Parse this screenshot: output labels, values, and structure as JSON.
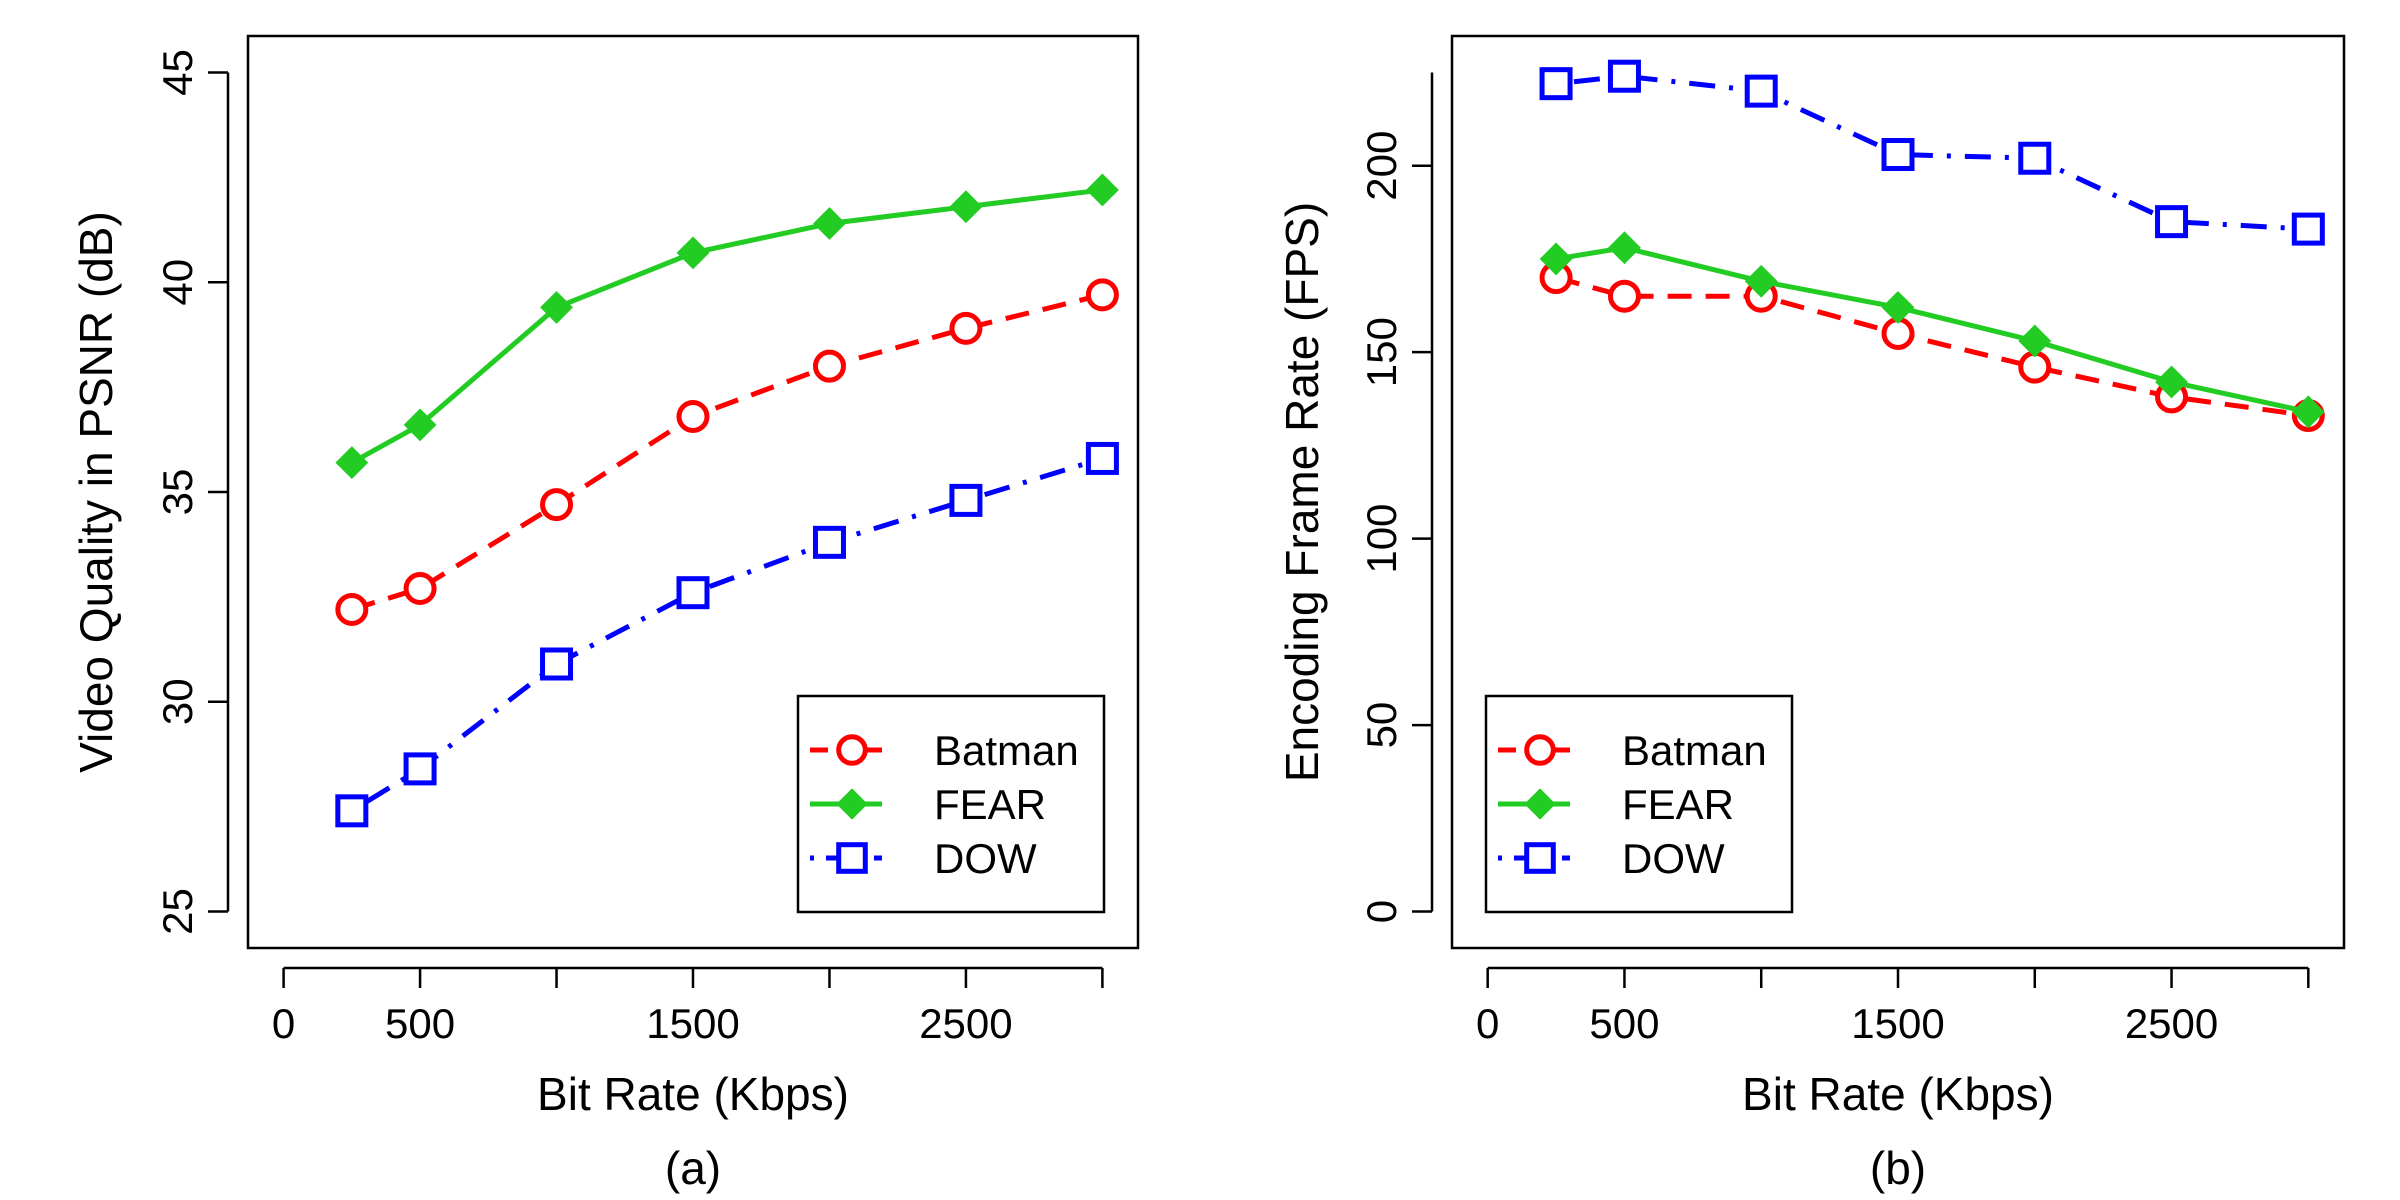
{
  "chart_data": [
    {
      "type": "line",
      "caption": "(a)",
      "xlabel": "Bit Rate (Kbps)",
      "ylabel": "Video Quality in PSNR (dB)",
      "xlim": [
        0,
        3000
      ],
      "ylim": [
        25,
        45
      ],
      "xticks": [
        0,
        500,
        1500,
        2500
      ],
      "xtick_marks": [
        0,
        500,
        1000,
        1500,
        2000,
        2500,
        3000
      ],
      "xtick_labels": [
        "0",
        "500",
        "1500",
        "2500"
      ],
      "yticks": [
        25,
        30,
        35,
        40,
        45
      ],
      "ytick_labels": [
        "25",
        "30",
        "35",
        "40",
        "45"
      ],
      "x": [
        250,
        500,
        1000,
        1500,
        2000,
        2500,
        3000
      ],
      "legend_position": "bottom-right",
      "series": [
        {
          "name": "Batman",
          "color": "#ff0000",
          "marker": "circle",
          "dash": "dashed",
          "values": [
            32.2,
            32.7,
            34.7,
            36.8,
            38.0,
            38.9,
            39.7
          ]
        },
        {
          "name": "FEAR",
          "color": "#22cc22",
          "marker": "diamond",
          "dash": "solid",
          "values": [
            35.7,
            36.6,
            39.4,
            40.7,
            41.4,
            41.8,
            42.2
          ]
        },
        {
          "name": "DOW",
          "color": "#0000ff",
          "marker": "square",
          "dash": "dotdash",
          "values": [
            27.4,
            28.4,
            30.9,
            32.6,
            33.8,
            34.8,
            35.8
          ]
        }
      ]
    },
    {
      "type": "line",
      "caption": "(b)",
      "xlabel": "Bit Rate (Kbps)",
      "ylabel": "Encoding Frame Rate (FPS)",
      "xlim": [
        0,
        3000
      ],
      "ylim": [
        0,
        225
      ],
      "xticks": [
        0,
        500,
        1500,
        2500
      ],
      "xtick_marks": [
        0,
        500,
        1000,
        1500,
        2000,
        2500,
        3000
      ],
      "xtick_labels": [
        "0",
        "500",
        "1500",
        "2500"
      ],
      "yticks": [
        0,
        50,
        100,
        150,
        200
      ],
      "ytick_labels": [
        "0",
        "50",
        "100",
        "150",
        "200"
      ],
      "x": [
        250,
        500,
        1000,
        1500,
        2000,
        2500,
        3000
      ],
      "legend_position": "bottom-left",
      "series": [
        {
          "name": "Batman",
          "color": "#ff0000",
          "marker": "circle",
          "dash": "dashed",
          "values": [
            170,
            165,
            165,
            155,
            146,
            138,
            133
          ]
        },
        {
          "name": "FEAR",
          "color": "#22cc22",
          "marker": "diamond",
          "dash": "solid",
          "values": [
            175,
            178,
            169,
            162,
            153,
            142,
            134
          ]
        },
        {
          "name": "DOW",
          "color": "#0000ff",
          "marker": "square",
          "dash": "dotdash",
          "values": [
            222,
            224,
            220,
            203,
            202,
            185,
            183
          ]
        }
      ]
    }
  ]
}
